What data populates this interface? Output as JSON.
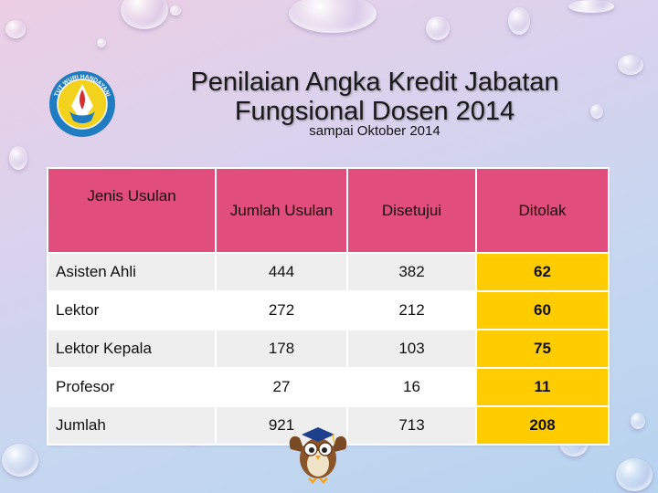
{
  "title_line1": "Penilaian Angka Kredit Jabatan",
  "title_line2": "Fungsional Dosen 2014",
  "subtitle": "sampai Oktober 2014",
  "logo_text": "TUT WURI HANDAYANI",
  "table": {
    "headers": [
      "Jenis Usulan",
      "Jumlah Usulan",
      "Disetujui",
      "Ditolak"
    ],
    "rows": [
      [
        "Asisten Ahli",
        "444",
        "382",
        "62"
      ],
      [
        "Lektor",
        "272",
        "212",
        "60"
      ],
      [
        "Lektor Kepala",
        "178",
        "103",
        "75"
      ],
      [
        "Profesor",
        "27",
        "16",
        "11"
      ],
      [
        "Jumlah",
        "921",
        "713",
        "208"
      ]
    ]
  },
  "colors": {
    "header": "#e14d7c",
    "highlight": "#ffcc00",
    "row_alt": "#eeeeee"
  },
  "icons": [
    "ministry-logo-icon",
    "graduation-owl-icon"
  ]
}
